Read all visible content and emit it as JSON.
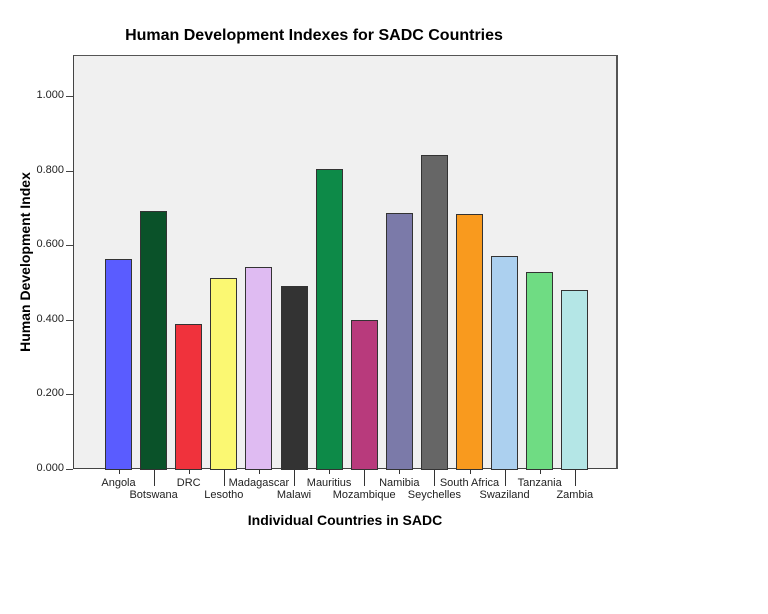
{
  "chart_data": {
    "type": "bar",
    "title": "Human Development Indexes for SADC Countries",
    "xlabel": "Individual Countries in SADC",
    "ylabel": "Human Development Index",
    "ylim": [
      0,
      1.1
    ],
    "y_ticks": [
      "0.000",
      "0.200",
      "0.400",
      "0.600",
      "0.800",
      "1.000"
    ],
    "grid": false,
    "legend": null,
    "categories": [
      "Angola",
      "Botswana",
      "DRC",
      "Lesotho",
      "Madagascar",
      "Malawi",
      "Mauritius",
      "Mozambique",
      "Namibia",
      "Seychelles",
      "South Africa",
      "Swaziland",
      "Tanzania",
      "Zambia"
    ],
    "values": [
      0.563,
      0.693,
      0.389,
      0.512,
      0.541,
      0.491,
      0.803,
      0.4,
      0.685,
      0.843,
      0.683,
      0.571,
      0.528,
      0.48
    ],
    "colors": [
      "#5a5cff",
      "#0a5229",
      "#f0323c",
      "#fbf872",
      "#dfbbf2",
      "#333333",
      "#0d8a48",
      "#b83a7c",
      "#7b7aa9",
      "#666666",
      "#f99a1e",
      "#acd0ef",
      "#6fdc83",
      "#b4e6e6"
    ]
  }
}
